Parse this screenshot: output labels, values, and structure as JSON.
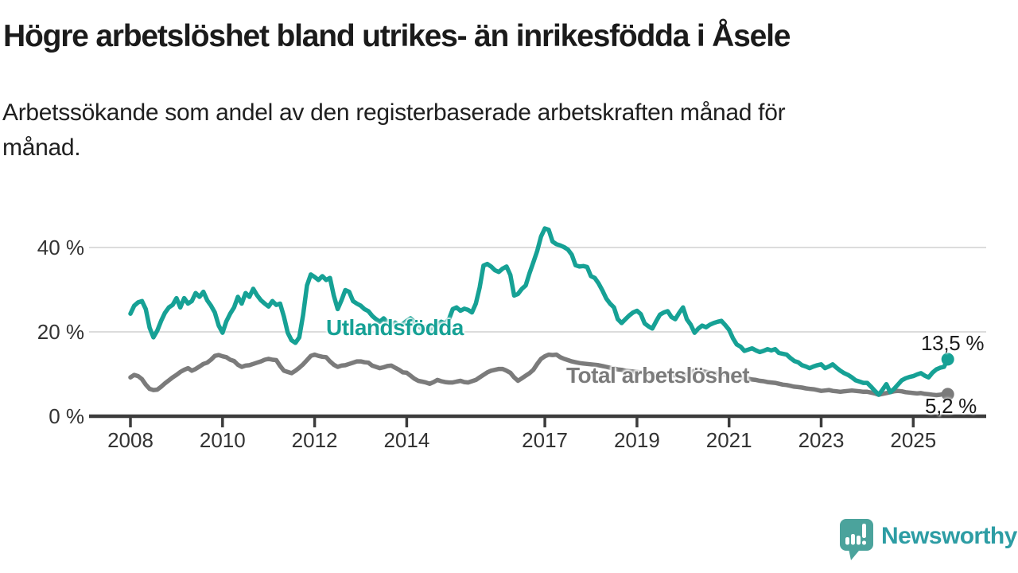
{
  "title": "Högre arbetslöshet bland utrikes- än inrikesfödda i Åsele",
  "subtitle": {
    "lines": [
      "Arbetssökande som andel av den registerbaserade arbetskraften månad för",
      "månad."
    ]
  },
  "chart_data": {
    "type": "line",
    "unit": "%",
    "frequency": "monthly",
    "x_start": "2008-01",
    "x_end": "2025-10",
    "grid": true,
    "x_axis": {
      "ticks": [
        2008,
        2010,
        2012,
        2014,
        2017,
        2019,
        2021,
        2023,
        2025
      ]
    },
    "y_axis": {
      "range": [
        0,
        47
      ],
      "ticks": [
        {
          "value": 0,
          "label": "0 %"
        },
        {
          "value": 20,
          "label": "20 %"
        },
        {
          "value": 40,
          "label": "40 %"
        }
      ]
    },
    "colors": {
      "grid": "#dcdcdc",
      "axis": "#3c3c3c",
      "tick_text": "#333333",
      "value_text": "#1b1b1b"
    },
    "series": [
      {
        "key": "utlandsfodda",
        "name": "Utlandsfödda",
        "color": "#16a195",
        "end_label": "13,5 %",
        "values": [
          24.3,
          26.2,
          27.0,
          27.3,
          25.4,
          21.0,
          18.7,
          20.3,
          22.6,
          24.5,
          25.8,
          26.4,
          28.0,
          25.8,
          28.0,
          26.7,
          27.3,
          29.2,
          28.3,
          29.5,
          27.5,
          26.2,
          24.6,
          21.5,
          19.8,
          22.5,
          24.3,
          25.8,
          28.3,
          26.7,
          29.2,
          28.3,
          30.2,
          28.7,
          27.5,
          26.7,
          26.0,
          27.3,
          26.4,
          26.7,
          23.6,
          19.8,
          18.0,
          17.4,
          18.7,
          24.0,
          31.0,
          33.6,
          33.0,
          32.3,
          33.2,
          32.3,
          32.8,
          28.6,
          25.4,
          27.5,
          29.9,
          29.5,
          27.3,
          26.7,
          26.2,
          25.4,
          24.9,
          23.8,
          23.0,
          22.4,
          23.2,
          22.2,
          21.6,
          22.2,
          21.4,
          21.9,
          22.6,
          23.2,
          22.4,
          21.4,
          20.7,
          21.2,
          20.5,
          21.1,
          21.8,
          22.4,
          22.0,
          23.0,
          25.4,
          25.8,
          25.0,
          25.5,
          25.2,
          24.6,
          26.7,
          30.5,
          35.7,
          36.1,
          35.5,
          34.6,
          34.2,
          35.0,
          35.5,
          33.5,
          28.6,
          29.0,
          30.2,
          31.0,
          33.9,
          36.5,
          39.2,
          42.6,
          44.5,
          44.2,
          41.4,
          40.8,
          40.5,
          40.1,
          39.5,
          38.3,
          35.8,
          35.5,
          35.6,
          35.4,
          33.2,
          32.8,
          31.5,
          29.8,
          27.9,
          26.7,
          25.8,
          23.0,
          22.1,
          23.0,
          23.9,
          24.6,
          25.0,
          24.2,
          22.0,
          21.3,
          20.8,
          22.5,
          24.1,
          24.6,
          24.9,
          23.5,
          23.0,
          24.5,
          25.8,
          23.0,
          21.7,
          19.8,
          20.8,
          21.5,
          21.1,
          21.7,
          22.1,
          22.4,
          22.6,
          21.6,
          20.5,
          18.5,
          17.0,
          16.5,
          15.5,
          15.8,
          16.1,
          15.6,
          15.2,
          15.5,
          15.9,
          15.6,
          15.9,
          15.0,
          14.8,
          14.6,
          13.8,
          13.1,
          12.8,
          12.1,
          11.8,
          11.4,
          11.8,
          12.1,
          12.3,
          11.4,
          11.8,
          12.3,
          11.5,
          10.8,
          10.2,
          9.8,
          9.2,
          8.5,
          8.2,
          7.9,
          7.9,
          7.0,
          6.0,
          5.1,
          6.3,
          7.6,
          5.7,
          6.5,
          7.5,
          8.5,
          9.0,
          9.3,
          9.5,
          9.9,
          10.2,
          9.6,
          9.2,
          10.3,
          11.1,
          11.5,
          11.7,
          13.5
        ]
      },
      {
        "key": "total-arbetsloshet",
        "name": "Total arbetslöshet",
        "color": "#7b7b7b",
        "end_label": "5,2 %",
        "values": [
          9.2,
          9.8,
          9.5,
          8.8,
          7.5,
          6.5,
          6.2,
          6.3,
          7.0,
          7.8,
          8.5,
          9.2,
          9.8,
          10.5,
          11.0,
          11.4,
          10.8,
          11.2,
          11.8,
          12.4,
          12.7,
          13.4,
          14.3,
          14.5,
          14.2,
          14.0,
          13.4,
          13.1,
          12.2,
          11.7,
          12.0,
          12.1,
          12.4,
          12.7,
          13.0,
          13.4,
          13.6,
          13.4,
          13.3,
          11.9,
          10.8,
          10.5,
          10.2,
          10.8,
          11.5,
          12.3,
          13.3,
          14.3,
          14.6,
          14.3,
          14.1,
          14.0,
          13.0,
          12.2,
          11.7,
          12.0,
          12.1,
          12.4,
          12.7,
          13.0,
          13.0,
          12.8,
          12.7,
          12.0,
          11.7,
          11.4,
          11.6,
          11.9,
          12.0,
          11.5,
          11.0,
          10.4,
          10.3,
          9.6,
          8.9,
          8.4,
          8.2,
          8.0,
          7.7,
          8.1,
          8.6,
          8.3,
          8.1,
          8.0,
          8.0,
          8.2,
          8.4,
          8.1,
          8.0,
          8.3,
          8.6,
          9.2,
          9.8,
          10.4,
          10.8,
          11.0,
          11.2,
          11.2,
          10.8,
          10.3,
          9.2,
          8.4,
          9.0,
          9.6,
          10.2,
          11.0,
          12.4,
          13.6,
          14.2,
          14.6,
          14.5,
          14.6,
          14.0,
          13.6,
          13.3,
          13.0,
          12.8,
          12.6,
          12.5,
          12.4,
          12.3,
          12.2,
          12.1,
          11.9,
          11.7,
          11.5,
          11.3,
          11.1,
          11.0,
          10.8,
          10.7,
          10.6,
          10.5,
          10.4,
          10.2,
          10.1,
          10.0,
          9.9,
          9.9,
          9.8,
          9.8,
          9.7,
          9.7,
          9.8,
          9.8,
          9.9,
          10.3,
          10.8,
          10.9,
          10.7,
          10.5,
          10.4,
          10.2,
          10.1,
          10.0,
          9.9,
          9.8,
          9.6,
          9.4,
          9.2,
          9.0,
          8.9,
          8.7,
          8.6,
          8.4,
          8.3,
          8.1,
          8.0,
          7.9,
          7.7,
          7.5,
          7.4,
          7.2,
          7.0,
          6.9,
          6.8,
          6.6,
          6.5,
          6.4,
          6.2,
          6.0,
          6.1,
          6.2,
          6.0,
          5.9,
          5.8,
          5.9,
          6.0,
          6.1,
          6.0,
          5.9,
          5.8,
          5.8,
          5.6,
          5.4,
          5.1,
          5.3,
          5.5,
          5.7,
          5.9,
          6.0,
          5.9,
          5.7,
          5.6,
          5.5,
          5.4,
          5.5,
          5.3,
          5.2,
          5.1,
          5.0,
          5.1,
          5.3,
          5.2
        ]
      }
    ]
  },
  "branding": {
    "logo_text": "Newsworthy",
    "icon_color": "#4ba39c",
    "text_color": "#2d9da4"
  }
}
